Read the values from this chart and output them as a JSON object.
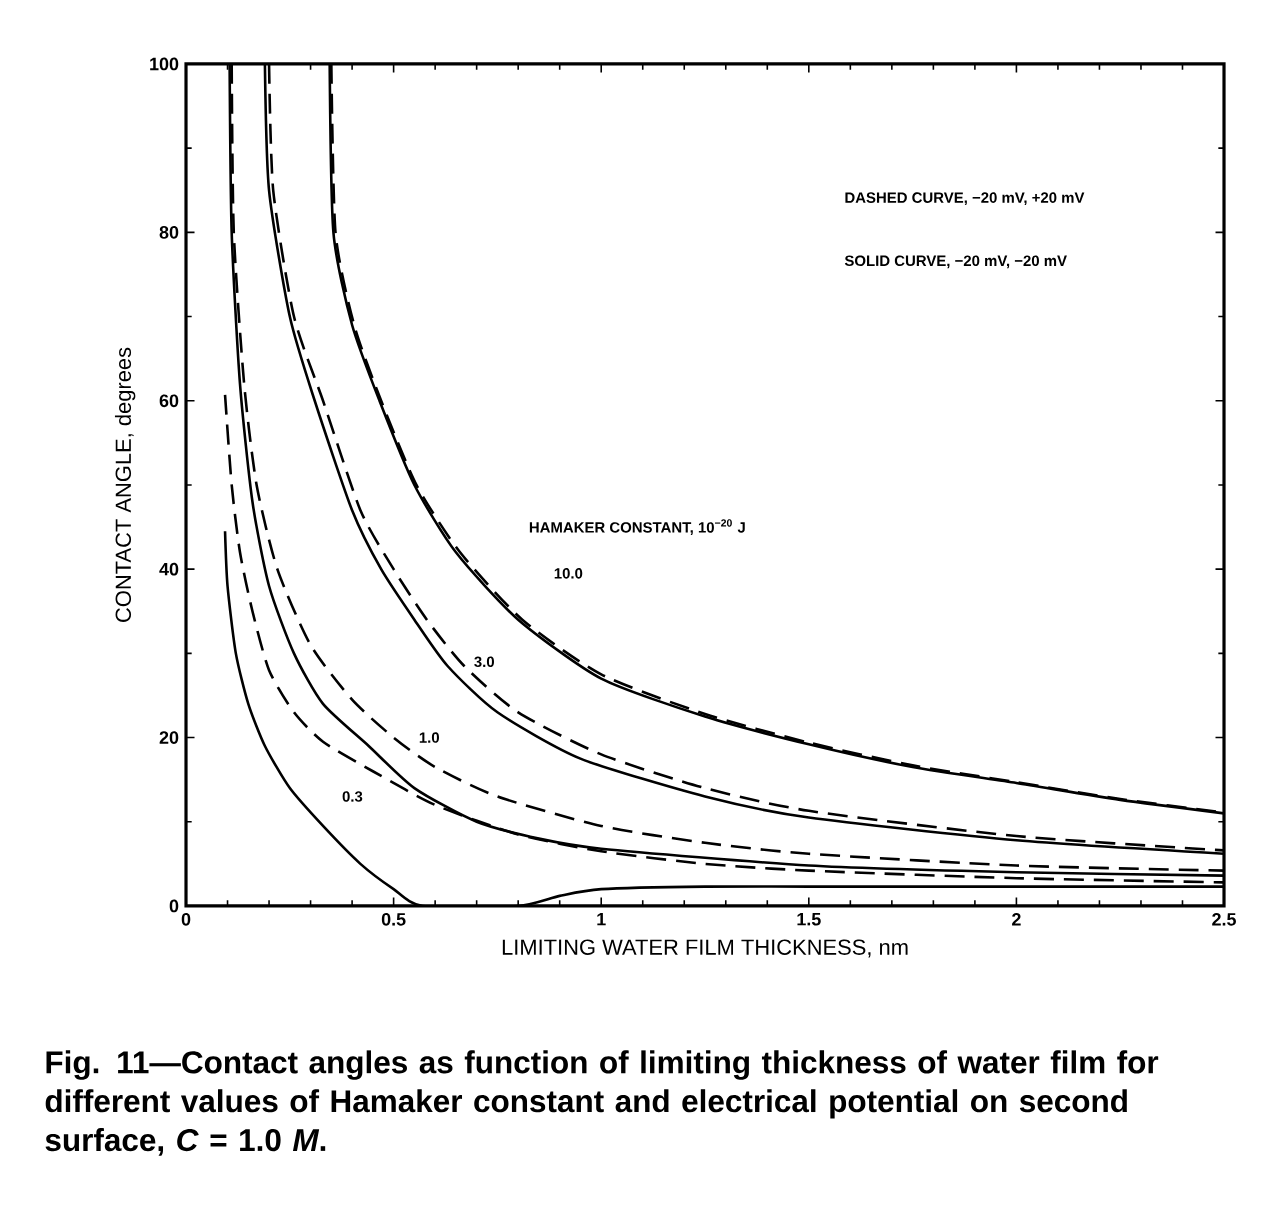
{
  "chart_data": {
    "type": "line",
    "xlabel": "LIMITING WATER FILM THICKNESS, nm",
    "ylabel": "CONTACT ANGLE, degrees",
    "xlim": [
      0,
      2.5
    ],
    "ylim": [
      0,
      100
    ],
    "xticks": [
      0,
      0.5,
      1,
      1.5,
      2,
      2.5
    ],
    "yticks": [
      0,
      20,
      40,
      60,
      80,
      100
    ],
    "grid": false,
    "marker": "none",
    "series": [
      {
        "color": "#000000",
        "line_style": "solid",
        "x": [
          0.346,
          0.355,
          0.4,
          0.466,
          0.55,
          0.65,
          0.8,
          1.0,
          1.25,
          1.5,
          1.75,
          2.0,
          2.25,
          2.5
        ],
        "values": [
          100,
          80,
          69,
          60,
          50,
          42,
          34,
          27,
          22.5,
          19.2,
          16.5,
          14.6,
          12.6,
          11.0
        ]
      },
      {
        "color": "#000000",
        "line_style": "dashed",
        "x": [
          0.35,
          0.36,
          0.405,
          0.47,
          0.555,
          0.66,
          0.81,
          1.0,
          1.25,
          1.5,
          1.75,
          2.0,
          2.25,
          2.5
        ],
        "values": [
          100,
          80,
          69,
          60,
          50,
          42,
          34,
          27.5,
          22.8,
          19.4,
          16.7,
          14.7,
          12.7,
          11.1
        ]
      },
      {
        "color": "#000000",
        "line_style": "solid",
        "x": [
          0.19,
          0.2,
          0.25,
          0.31,
          0.4,
          0.47,
          0.55,
          0.63,
          0.75,
          0.95,
          1.25,
          1.5,
          2.0,
          2.5
        ],
        "values": [
          100,
          85,
          70,
          60,
          47,
          40,
          34,
          28.5,
          23,
          17.5,
          13,
          10.5,
          7.8,
          6.2
        ]
      },
      {
        "color": "#000000",
        "line_style": "dashed",
        "x": [
          0.2,
          0.21,
          0.26,
          0.33,
          0.42,
          0.5,
          0.58,
          0.67,
          0.8,
          1.0,
          1.25,
          1.5,
          2.0,
          2.5
        ],
        "values": [
          100,
          85,
          70,
          60,
          47,
          40,
          34,
          28.5,
          23,
          18,
          14,
          11.3,
          8.3,
          6.6
        ]
      },
      {
        "color": "#000000",
        "line_style": "solid",
        "x": [
          0.105,
          0.11,
          0.13,
          0.16,
          0.2,
          0.26,
          0.33,
          0.44,
          0.55,
          0.7,
          0.85,
          1.0,
          1.5,
          2.0,
          2.5
        ],
        "values": [
          100,
          80,
          62,
          48,
          38,
          30,
          24,
          19,
          14,
          10,
          8,
          6.8,
          4.8,
          4.0,
          3.6
        ]
      },
      {
        "color": "#000000",
        "line_style": "dashed",
        "x": [
          0.11,
          0.115,
          0.14,
          0.17,
          0.22,
          0.3,
          0.4,
          0.5,
          0.6,
          0.75,
          1.0,
          1.25,
          1.5,
          2.0,
          2.5
        ],
        "values": [
          100,
          80,
          62,
          50,
          40,
          31,
          24.5,
          20,
          16.5,
          13,
          9.5,
          7.5,
          6.2,
          4.8,
          4.2
        ]
      },
      {
        "color": "#000000",
        "line_style": "dashed",
        "x": [
          0.094,
          0.11,
          0.13,
          0.16,
          0.2,
          0.26,
          0.33,
          0.45,
          0.6,
          0.8,
          1.0,
          1.25,
          1.5,
          2.0,
          2.5
        ],
        "values": [
          60.7,
          50,
          42,
          35,
          28,
          23,
          19.5,
          16,
          12,
          8.5,
          6.5,
          5,
          4.2,
          3.3,
          2.8
        ]
      },
      {
        "color": "#000000",
        "line_style": "solid",
        "x": [
          0.094,
          0.1,
          0.12,
          0.15,
          0.19,
          0.25,
          0.33,
          0.42,
          0.5,
          0.57,
          0.8,
          0.9,
          1.0,
          1.25,
          1.5,
          2.0,
          2.5
        ],
        "values": [
          44.5,
          38,
          30,
          24,
          19,
          14,
          9.5,
          5,
          2,
          0,
          0,
          1.2,
          2.0,
          2.3,
          2.3,
          2.3,
          2.3
        ]
      }
    ],
    "annotations": [
      "DASHED CURVE, −20 mV, +20 mV",
      "SOLID CURVE, −20 mV, −20 mV",
      "HAMAKER CONSTANT, 10$^{−20}$ J",
      "10.0",
      "3.0",
      "1.0",
      "0.3",
      "Fig. 11—Contact angles as function of limiting thickness of water film for different values of Hamaker constant and electrical potential on second surface, *C* = 1.0 *M*."
    ]
  }
}
